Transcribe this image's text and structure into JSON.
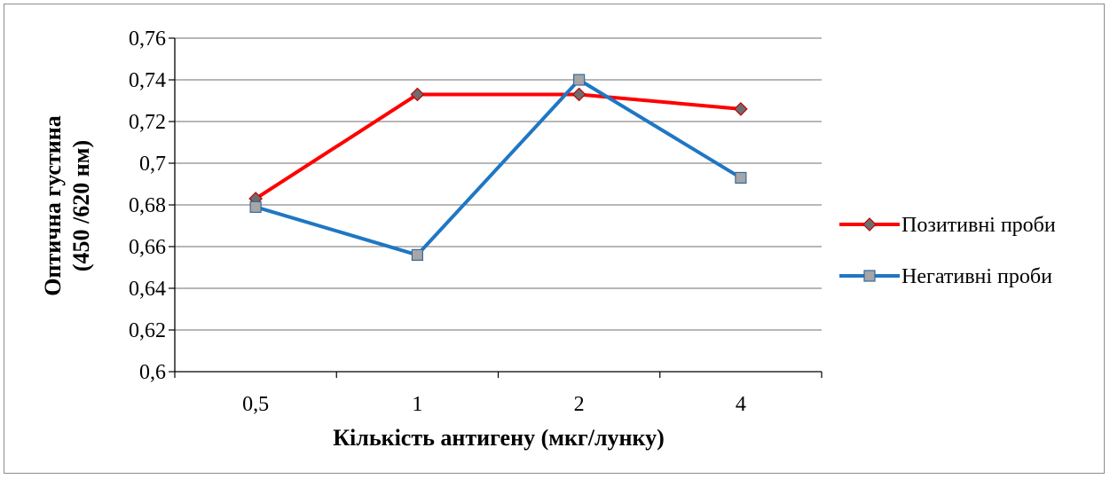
{
  "chart_data": {
    "type": "line",
    "categories": [
      "0,5",
      "1",
      "2",
      "4"
    ],
    "series": [
      {
        "name": "Позитивні проби",
        "values": [
          0.683,
          0.733,
          0.733,
          0.726
        ],
        "color": "#ff0000",
        "marker": "diamond",
        "marker_color": "#6d6d6d"
      },
      {
        "name": "Негативні проби",
        "values": [
          0.679,
          0.656,
          0.74,
          0.693
        ],
        "color": "#1f77c4",
        "marker": "square",
        "marker_color": "#a6a6a6"
      }
    ],
    "xlabel": "Кількість антигену (мкг/лунку)",
    "ylabel_lines": [
      "Оптична густина",
      "(450 /620 нм)"
    ],
    "ylim": [
      0.6,
      0.76
    ],
    "yticks": [
      {
        "value": 0.6,
        "label": "0,6"
      },
      {
        "value": 0.62,
        "label": "0,62"
      },
      {
        "value": 0.64,
        "label": "0,64"
      },
      {
        "value": 0.66,
        "label": "0,66"
      },
      {
        "value": 0.68,
        "label": "0,68"
      },
      {
        "value": 0.7,
        "label": "0,7"
      },
      {
        "value": 0.72,
        "label": "0,72"
      },
      {
        "value": 0.74,
        "label": "0,74"
      },
      {
        "value": 0.76,
        "label": "0,76"
      }
    ],
    "grid": true,
    "legend_position": "right"
  }
}
